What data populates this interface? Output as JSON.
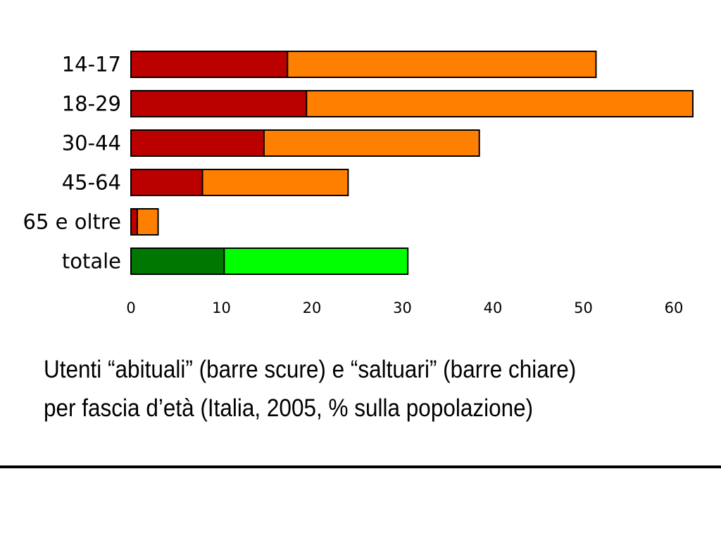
{
  "chart_data": {
    "type": "bar",
    "orientation": "horizontal",
    "stacked": true,
    "categories": [
      "14-17",
      "18-29",
      "30-44",
      "45-64",
      "65 e oltre",
      "totale"
    ],
    "series": [
      {
        "values": [
          17.3,
          19.4,
          14.7,
          7.9,
          0.7,
          10.3
        ],
        "colors": [
          "#bb0000",
          "#bb0000",
          "#bb0000",
          "#bb0000",
          "#bb0000",
          "#007700"
        ]
      },
      {
        "values": [
          34.1,
          42.7,
          23.8,
          16.1,
          2.3,
          20.3
        ],
        "colors": [
          "#ff8000",
          "#ff8000",
          "#ff8000",
          "#ff8000",
          "#ff8000",
          "#00ff00"
        ]
      }
    ],
    "xlim": [
      0,
      62
    ],
    "xticks": [
      0,
      10,
      20,
      30,
      40,
      50,
      60
    ],
    "grid": false,
    "legend": "none"
  },
  "caption": {
    "line1": "Utenti “abituali” (barre scure) e “saltuari” (barre chiare)",
    "line2": "per fascia d’età (Italia, 2005, % sulla popolazione)"
  }
}
